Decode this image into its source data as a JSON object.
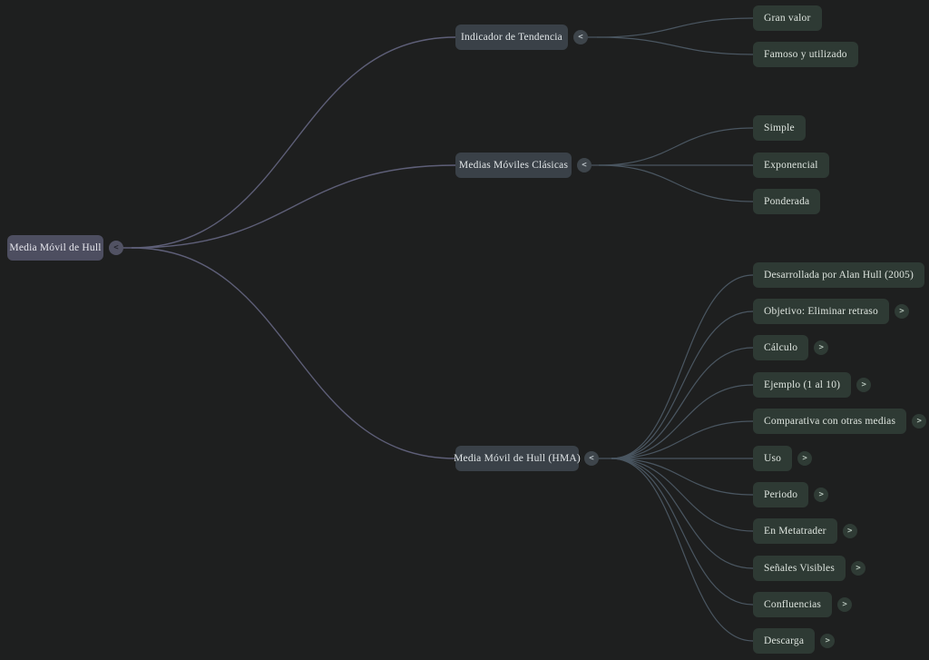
{
  "canvas": {
    "background": "#1e1f1f",
    "root_link_color": "#5e5f78",
    "branch_link_color": "#4a5661"
  },
  "mindmap": {
    "root": {
      "label": "Media Móvil de Hull",
      "toggle": "<"
    },
    "branches": [
      {
        "label": "Indicador de Tendencia",
        "toggle": "<",
        "children": [
          {
            "label": "Gran valor",
            "toggle": null
          },
          {
            "label": "Famoso y utilizado",
            "toggle": null
          }
        ]
      },
      {
        "label": "Medias Móviles Clásicas",
        "toggle": "<",
        "children": [
          {
            "label": "Simple",
            "toggle": null
          },
          {
            "label": "Exponencial",
            "toggle": null
          },
          {
            "label": "Ponderada",
            "toggle": null
          }
        ]
      },
      {
        "label": "Media Móvil de Hull (HMA)",
        "toggle": "<",
        "children": [
          {
            "label": "Desarrollada por Alan Hull (2005)",
            "toggle": null
          },
          {
            "label": "Objetivo: Eliminar retraso",
            "toggle": ">"
          },
          {
            "label": "Cálculo",
            "toggle": ">"
          },
          {
            "label": "Ejemplo (1 al 10)",
            "toggle": ">"
          },
          {
            "label": "Comparativa con otras medias",
            "toggle": ">"
          },
          {
            "label": "Uso",
            "toggle": ">"
          },
          {
            "label": "Periodo",
            "toggle": ">"
          },
          {
            "label": "En Metatrader",
            "toggle": ">"
          },
          {
            "label": "Señales Visibles",
            "toggle": ">"
          },
          {
            "label": "Confluencias",
            "toggle": ">"
          },
          {
            "label": "Descarga",
            "toggle": ">"
          }
        ]
      }
    ]
  }
}
